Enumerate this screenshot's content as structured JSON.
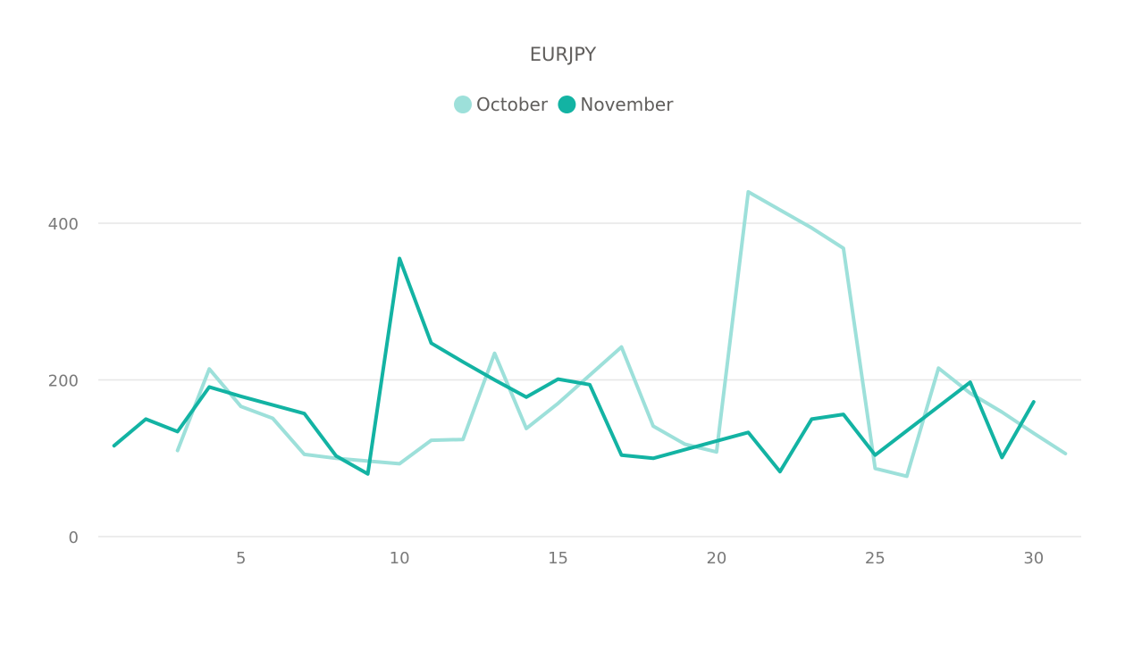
{
  "chart_data": {
    "type": "line",
    "title": "EURJPY",
    "xlabel": "",
    "ylabel": "",
    "xlim": [
      0.5,
      31.5
    ],
    "ylim": [
      0,
      400
    ],
    "x_ticks": [
      5,
      10,
      15,
      20,
      25,
      30
    ],
    "y_ticks": [
      0,
      200,
      400
    ],
    "grid": true,
    "legend_position": "top-center",
    "series": [
      {
        "name": "October",
        "color": "#9de0da",
        "points": [
          [
            3,
            110
          ],
          [
            4,
            214
          ],
          [
            5,
            166
          ],
          [
            6,
            151
          ],
          [
            7,
            105
          ],
          [
            8,
            100
          ],
          [
            10,
            93
          ],
          [
            11,
            123
          ],
          [
            12,
            124
          ],
          [
            13,
            234
          ],
          [
            14,
            138
          ],
          [
            15,
            170
          ],
          [
            17,
            242
          ],
          [
            18,
            141
          ],
          [
            19,
            118
          ],
          [
            20,
            108
          ],
          [
            21,
            440
          ],
          [
            22,
            417
          ],
          [
            23,
            394
          ],
          [
            24,
            368
          ],
          [
            25,
            87
          ],
          [
            26,
            77
          ],
          [
            27,
            215
          ],
          [
            28,
            183
          ],
          [
            29,
            159
          ],
          [
            30,
            132
          ],
          [
            31,
            106
          ]
        ]
      },
      {
        "name": "November",
        "color": "#13b3a3",
        "points": [
          [
            1,
            116
          ],
          [
            2,
            150
          ],
          [
            3,
            134
          ],
          [
            4,
            191
          ],
          [
            5,
            179
          ],
          [
            6,
            168
          ],
          [
            7,
            157
          ],
          [
            8,
            103
          ],
          [
            9,
            80
          ],
          [
            10,
            355
          ],
          [
            11,
            247
          ],
          [
            12,
            223
          ],
          [
            13,
            200
          ],
          [
            14,
            178
          ],
          [
            15,
            201
          ],
          [
            16,
            194
          ],
          [
            17,
            104
          ],
          [
            18,
            100
          ],
          [
            19,
            111
          ],
          [
            20,
            122
          ],
          [
            21,
            133
          ],
          [
            22,
            83
          ],
          [
            23,
            150
          ],
          [
            24,
            156
          ],
          [
            25,
            104
          ],
          [
            26,
            135
          ],
          [
            27,
            166
          ],
          [
            28,
            197
          ],
          [
            29,
            101
          ],
          [
            30,
            172
          ]
        ]
      }
    ]
  }
}
